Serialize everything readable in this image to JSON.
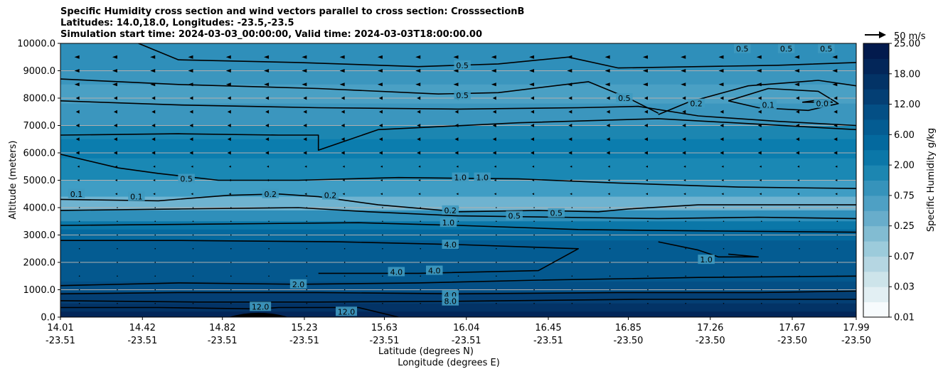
{
  "chart_data": {
    "type": "contour",
    "title_lines": [
      "Specific Humidity cross section and wind vectors parallel to cross section: CrosssectionB",
      "Latitudes: 14.0,18.0, Longitudes: -23.5,-23.5",
      "Simulation start time: 2024-03-03_00:00:00, Valid time: 2024-03-03T18:00:00.00"
    ],
    "ylabel": "Altitude (meters)",
    "xlabel_lines": [
      "Latitude (degrees N)",
      "Longitude (degrees E)"
    ],
    "ylim": [
      0,
      10000
    ],
    "yticks": [
      "0.0",
      "1000.0",
      "2000.0",
      "3000.0",
      "4000.0",
      "5000.0",
      "6000.0",
      "7000.0",
      "8000.0",
      "9000.0",
      "10000.0"
    ],
    "xticks": [
      {
        "lat": "14.01",
        "lon": "-23.51"
      },
      {
        "lat": "14.42",
        "lon": "-23.51"
      },
      {
        "lat": "14.82",
        "lon": "-23.51"
      },
      {
        "lat": "15.23",
        "lon": "-23.51"
      },
      {
        "lat": "15.63",
        "lon": "-23.51"
      },
      {
        "lat": "16.04",
        "lon": "-23.51"
      },
      {
        "lat": "16.45",
        "lon": "-23.51"
      },
      {
        "lat": "16.85",
        "lon": "-23.50"
      },
      {
        "lat": "17.26",
        "lon": "-23.50"
      },
      {
        "lat": "17.67",
        "lon": "-23.50"
      },
      {
        "lat": "17.99",
        "lon": "-23.50"
      }
    ],
    "grid": "horizontal",
    "colorbar": {
      "label": "Specific Humidity g/kg",
      "levels": [
        0.01,
        0.02,
        0.03,
        0.05,
        0.07,
        0.1,
        0.25,
        0.5,
        0.75,
        1.0,
        2.0,
        4.0,
        6.0,
        8.0,
        12.0,
        15.0,
        18.0,
        20.0,
        25.0
      ],
      "tick_labels": [
        "0.01",
        "0.03",
        "0.07",
        "0.25",
        "0.75",
        "2.00",
        "6.00",
        "12.00",
        "18.00",
        "25.00"
      ],
      "colors": [
        "#f7fbfd",
        "#e2eff3",
        "#cde4ea",
        "#b5d6e2",
        "#9ccbdb",
        "#82bcd2",
        "#68adcb",
        "#4ea0c4",
        "#3693bb",
        "#1c86b1",
        "#0b77a8",
        "#04699e",
        "#045c92",
        "#044f85",
        "#043f74",
        "#033366",
        "#032659",
        "#021a4d"
      ]
    },
    "contour_labels": [
      {
        "v": "0.5",
        "x": 16.02,
        "y": 9200
      },
      {
        "v": "0.5",
        "x": 16.02,
        "y": 8100
      },
      {
        "v": "0.5",
        "x": 16.83,
        "y": 8000
      },
      {
        "v": "0.2",
        "x": 17.19,
        "y": 7800
      },
      {
        "v": "0.1",
        "x": 17.55,
        "y": 7750
      },
      {
        "v": "0.0",
        "x": 17.82,
        "y": 7800
      },
      {
        "v": "0.5",
        "x": 17.42,
        "y": 9800
      },
      {
        "v": "0.5",
        "x": 17.64,
        "y": 9800
      },
      {
        "v": "0.5",
        "x": 17.84,
        "y": 9800
      },
      {
        "v": "0.5",
        "x": 14.64,
        "y": 5050
      },
      {
        "v": "0.1",
        "x": 14.09,
        "y": 4500
      },
      {
        "v": "0.1",
        "x": 14.39,
        "y": 4400
      },
      {
        "v": "0.2",
        "x": 15.06,
        "y": 4500
      },
      {
        "v": "0.2",
        "x": 15.36,
        "y": 4450
      },
      {
        "v": "1.0",
        "x": 16.01,
        "y": 5100
      },
      {
        "v": "1.0",
        "x": 16.12,
        "y": 5100
      },
      {
        "v": "0.2",
        "x": 15.96,
        "y": 3900
      },
      {
        "v": "0.5",
        "x": 16.28,
        "y": 3700
      },
      {
        "v": "0.5",
        "x": 16.49,
        "y": 3800
      },
      {
        "v": "1.0",
        "x": 15.95,
        "y": 3450
      },
      {
        "v": "4.0",
        "x": 15.96,
        "y": 2650
      },
      {
        "v": "4.0",
        "x": 15.69,
        "y": 1650
      },
      {
        "v": "4.0",
        "x": 15.88,
        "y": 1700
      },
      {
        "v": "1.0",
        "x": 17.24,
        "y": 2100
      },
      {
        "v": "2.0",
        "x": 15.2,
        "y": 1200
      },
      {
        "v": "4.0",
        "x": 15.96,
        "y": 800
      },
      {
        "v": "8.0",
        "x": 15.96,
        "y": 580
      },
      {
        "v": "12.0",
        "x": 15.01,
        "y": 380
      },
      {
        "v": "12.0",
        "x": 15.44,
        "y": 200
      }
    ],
    "contour_lines": [
      {
        "level": 0.5,
        "points": [
          [
            14.01,
            7900
          ],
          [
            14.6,
            7750
          ],
          [
            15.3,
            7650
          ],
          [
            16.0,
            7600
          ],
          [
            16.6,
            7650
          ],
          [
            16.9,
            7700
          ],
          [
            17.2,
            7350
          ],
          [
            17.6,
            7150
          ],
          [
            17.99,
            7000
          ]
        ]
      },
      {
        "level": 0.5,
        "points": [
          [
            14.4,
            10000
          ],
          [
            14.6,
            9400
          ],
          [
            15.2,
            9300
          ],
          [
            15.8,
            9150
          ],
          [
            16.2,
            9250
          ],
          [
            16.55,
            9500
          ],
          [
            16.8,
            9100
          ],
          [
            17.2,
            9150
          ],
          [
            17.6,
            9200
          ],
          [
            17.99,
            9300
          ]
        ]
      },
      {
        "level": 0.5,
        "points": [
          [
            14.01,
            8700
          ],
          [
            14.6,
            8500
          ],
          [
            15.3,
            8350
          ],
          [
            15.9,
            8150
          ],
          [
            16.2,
            8200
          ],
          [
            16.65,
            8600
          ],
          [
            16.85,
            8000
          ],
          [
            17.0,
            7450
          ]
        ]
      },
      {
        "level": 0.2,
        "points": [
          [
            17.0,
            7400
          ],
          [
            17.15,
            7850
          ],
          [
            17.45,
            8450
          ],
          [
            17.8,
            8650
          ],
          [
            17.99,
            8450
          ]
        ]
      },
      {
        "level": 0.1,
        "points": [
          [
            17.35,
            7900
          ],
          [
            17.55,
            8350
          ],
          [
            17.8,
            8250
          ],
          [
            17.9,
            7800
          ],
          [
            17.75,
            7550
          ],
          [
            17.5,
            7650
          ],
          [
            17.35,
            7900
          ]
        ]
      },
      {
        "level": 0.0,
        "points": [
          [
            17.72,
            7850
          ],
          [
            17.82,
            7950
          ],
          [
            17.87,
            7850
          ],
          [
            17.72,
            7850
          ]
        ]
      },
      {
        "level": 1.0,
        "points": [
          [
            14.01,
            6650
          ],
          [
            14.6,
            6700
          ],
          [
            15.1,
            6650
          ],
          [
            15.3,
            6650
          ],
          [
            15.3,
            6100
          ],
          [
            15.6,
            6850
          ],
          [
            16.3,
            7100
          ],
          [
            17.0,
            7250
          ],
          [
            17.5,
            7050
          ],
          [
            17.99,
            6850
          ]
        ]
      },
      {
        "level": 0.5,
        "points": [
          [
            14.01,
            5950
          ],
          [
            14.3,
            5450
          ],
          [
            14.5,
            5250
          ],
          [
            14.8,
            5000
          ],
          [
            15.2,
            5000
          ],
          [
            15.7,
            5100
          ],
          [
            16.3,
            5050
          ],
          [
            16.8,
            4900
          ],
          [
            17.4,
            4750
          ],
          [
            17.99,
            4700
          ]
        ]
      },
      {
        "level": 0.2,
        "points": [
          [
            14.01,
            4300
          ],
          [
            14.5,
            4250
          ],
          [
            14.85,
            4450
          ],
          [
            15.1,
            4500
          ],
          [
            15.3,
            4400
          ],
          [
            15.6,
            4100
          ],
          [
            16.0,
            3850
          ],
          [
            16.4,
            3900
          ],
          [
            16.7,
            3850
          ],
          [
            16.85,
            3950
          ],
          [
            17.2,
            4100
          ],
          [
            17.99,
            4100
          ]
        ]
      },
      {
        "level": 0.5,
        "points": [
          [
            14.01,
            3900
          ],
          [
            14.6,
            3950
          ],
          [
            15.2,
            4000
          ],
          [
            15.55,
            3850
          ],
          [
            16.0,
            3700
          ],
          [
            16.5,
            3650
          ],
          [
            17.0,
            3600
          ],
          [
            17.5,
            3650
          ],
          [
            17.99,
            3600
          ]
        ]
      },
      {
        "level": 1.0,
        "points": [
          [
            14.01,
            3350
          ],
          [
            14.8,
            3400
          ],
          [
            15.5,
            3450
          ],
          [
            16.0,
            3350
          ],
          [
            16.6,
            3200
          ],
          [
            17.2,
            3150
          ],
          [
            17.99,
            3100
          ]
        ]
      },
      {
        "level": 4.0,
        "points": [
          [
            14.01,
            2800
          ],
          [
            14.6,
            2800
          ],
          [
            15.4,
            2750
          ],
          [
            16.0,
            2650
          ],
          [
            16.6,
            2500
          ],
          [
            16.4,
            1700
          ],
          [
            15.8,
            1600
          ],
          [
            15.3,
            1600
          ]
        ]
      },
      {
        "level": 1.0,
        "points": [
          [
            17.0,
            2750
          ],
          [
            17.2,
            2450
          ],
          [
            17.3,
            2200
          ],
          [
            17.5,
            2200
          ],
          [
            17.35,
            2300
          ]
        ]
      },
      {
        "level": 2.0,
        "points": [
          [
            14.01,
            1150
          ],
          [
            14.6,
            1250
          ],
          [
            15.2,
            1200
          ],
          [
            15.8,
            1250
          ],
          [
            16.4,
            1350
          ],
          [
            17.2,
            1450
          ],
          [
            17.99,
            1500
          ]
        ]
      },
      {
        "level": 4.0,
        "points": [
          [
            14.01,
            850
          ],
          [
            14.6,
            900
          ],
          [
            15.3,
            900
          ],
          [
            16.0,
            850
          ],
          [
            16.8,
            900
          ],
          [
            17.5,
            900
          ],
          [
            17.99,
            950
          ]
        ]
      },
      {
        "level": 8.0,
        "points": [
          [
            14.01,
            600
          ],
          [
            14.7,
            550
          ],
          [
            15.3,
            550
          ],
          [
            16.0,
            580
          ],
          [
            16.9,
            650
          ],
          [
            17.99,
            650
          ]
        ]
      },
      {
        "level": 12.0,
        "points": [
          [
            14.01,
            350
          ],
          [
            14.5,
            350
          ],
          [
            15.0,
            300
          ],
          [
            15.1,
            350
          ],
          [
            15.5,
            350
          ],
          [
            15.7,
            0
          ]
        ]
      }
    ],
    "filled_bands": [
      {
        "y": 10000,
        "color": "#2f8fba"
      },
      {
        "y": 9000,
        "color": "#3b96be"
      },
      {
        "y": 8500,
        "color": "#4aa0c4"
      },
      {
        "y": 7800,
        "color": "#3b96be"
      },
      {
        "y": 7000,
        "color": "#1c86b1"
      },
      {
        "y": 6500,
        "color": "#0b7dae"
      },
      {
        "y": 5800,
        "color": "#1a88b4"
      },
      {
        "y": 5000,
        "color": "#3f9dc4"
      },
      {
        "y": 4400,
        "color": "#6fb3d0"
      },
      {
        "y": 3900,
        "color": "#2f8fba"
      },
      {
        "y": 3500,
        "color": "#0b77a8"
      },
      {
        "y": 3200,
        "color": "#04699e"
      },
      {
        "y": 2800,
        "color": "#045c92"
      },
      {
        "y": 2000,
        "color": "#04588e"
      },
      {
        "y": 1300,
        "color": "#044f85"
      },
      {
        "y": 900,
        "color": "#043f74"
      },
      {
        "y": 500,
        "color": "#033366"
      },
      {
        "y": 200,
        "color": "#032659"
      }
    ],
    "wind_key": {
      "label": "50 m/s"
    }
  }
}
